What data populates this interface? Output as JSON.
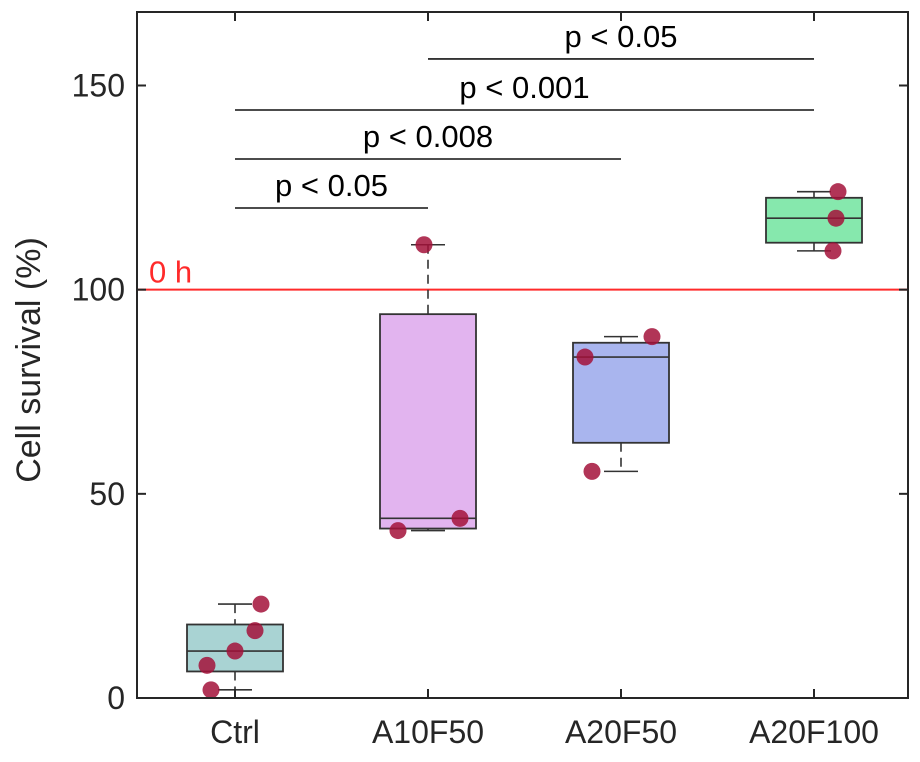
{
  "chart_data": {
    "type": "box",
    "ylabel": "Cell survival (%)",
    "xlabel": "",
    "ylim": [
      0,
      168
    ],
    "yticks": [
      0,
      50,
      100,
      150
    ],
    "grid": false,
    "categories": [
      "Ctrl",
      "A10F50",
      "A20F50",
      "A20F100"
    ],
    "boxes": [
      {
        "category": "Ctrl",
        "color": "#a9d3d3",
        "whisker_low": 2,
        "q1": 6.5,
        "median": 11.5,
        "q3": 18,
        "whisker_high": 23,
        "points": [
          2,
          8,
          11.5,
          16.5,
          23
        ]
      },
      {
        "category": "A10F50",
        "color": "#e2b4ef",
        "whisker_low": 41,
        "q1": 41.5,
        "median": 44,
        "q3": 94,
        "whisker_high": 111,
        "points": [
          41,
          44,
          111
        ]
      },
      {
        "category": "A20F50",
        "color": "#a9b5ee",
        "whisker_low": 55.5,
        "q1": 62.5,
        "median": 83.5,
        "q3": 87,
        "whisker_high": 88.5,
        "points": [
          55.5,
          83.5,
          88.5
        ]
      },
      {
        "category": "A20F100",
        "color": "#86e8ad",
        "whisker_low": 109.5,
        "q1": 111.5,
        "median": 117.5,
        "q3": 122.5,
        "whisker_high": 124,
        "points": [
          109.5,
          117.5,
          124
        ]
      }
    ],
    "point_color": "#a3123a",
    "reference_line": {
      "value": 100,
      "label": "0 h",
      "color": "#ff2a2a"
    },
    "significance": [
      {
        "from": "Ctrl",
        "to": "A10F50",
        "y": 120,
        "label": "p < 0.05"
      },
      {
        "from": "Ctrl",
        "to": "A20F50",
        "y": 132,
        "label": "p < 0.008"
      },
      {
        "from": "Ctrl",
        "to": "A20F100",
        "y": 144,
        "label": "p < 0.001"
      },
      {
        "from": "A10F50",
        "to": "A20F100",
        "y": 156.5,
        "label": "p < 0.05"
      }
    ]
  }
}
